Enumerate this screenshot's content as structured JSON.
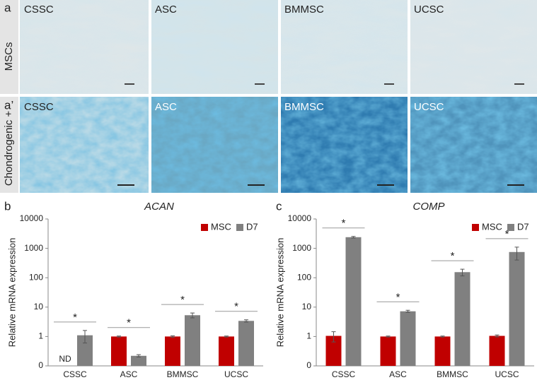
{
  "panels": [
    {
      "letter": "a",
      "row_label": "MSCs",
      "images": [
        "CSSC",
        "ASC",
        "BMMSC",
        "UCSC"
      ]
    },
    {
      "letter": "a’",
      "row_label": "Chondrogenic +",
      "images": [
        "CSSC",
        "ASC",
        "BMMSC",
        "UCSC"
      ]
    }
  ],
  "chart_data": [
    {
      "type": "bar",
      "panel_label": "b",
      "title": "ACAN",
      "y_label": "Relative mRNA expression",
      "categories": [
        "CSSC",
        "ASC",
        "BMMSC",
        "UCSC"
      ],
      "log_scale": true,
      "legend": "top right",
      "ylim": [
        0.1,
        10000
      ],
      "yticks": [
        {
          "value": 0.1,
          "label": "0"
        },
        1,
        10,
        100,
        1000,
        10000
      ],
      "series": [
        {
          "name": "MSC",
          "color": "#c00000",
          "values": [
            null,
            1,
            1,
            1
          ],
          "errors": [
            null,
            0.04,
            0.05,
            0.04
          ]
        },
        {
          "name": "D7",
          "color": "#808080",
          "values": [
            1.1,
            0.22,
            5.3,
            3.4
          ],
          "errors": [
            0.5,
            0.02,
            1.0,
            0.3
          ]
        }
      ],
      "annotations": [
        {
          "text": "ND",
          "category": 0
        }
      ],
      "significance": [
        {
          "category": 0,
          "label": "*"
        },
        {
          "category": 1,
          "label": "*"
        },
        {
          "category": 2,
          "label": "*"
        },
        {
          "category": 3,
          "label": "*"
        }
      ]
    },
    {
      "type": "bar",
      "panel_label": "c",
      "title": "COMP",
      "y_label": "Relative mRNA expression",
      "categories": [
        "CSSC",
        "ASC",
        "BMMSC",
        "UCSC"
      ],
      "log_scale": true,
      "legend": "top right",
      "ylim": [
        0.1,
        10000
      ],
      "yticks": [
        {
          "value": 0.1,
          "label": "0"
        },
        1,
        10,
        100,
        1000,
        10000
      ],
      "series": [
        {
          "name": "MSC",
          "color": "#c00000",
          "values": [
            1.05,
            1,
            1,
            1.05
          ],
          "errors": [
            0.4,
            0.04,
            0.04,
            0.08
          ]
        },
        {
          "name": "D7",
          "color": "#808080",
          "values": [
            2400,
            7.2,
            155,
            750
          ],
          "errors": [
            150,
            0.6,
            40,
            350
          ]
        }
      ],
      "annotations": [],
      "significance": [
        {
          "category": 0,
          "label": "*"
        },
        {
          "category": 1,
          "label": "*"
        },
        {
          "category": 2,
          "label": "*"
        },
        {
          "category": 3,
          "label": "*"
        }
      ]
    }
  ]
}
